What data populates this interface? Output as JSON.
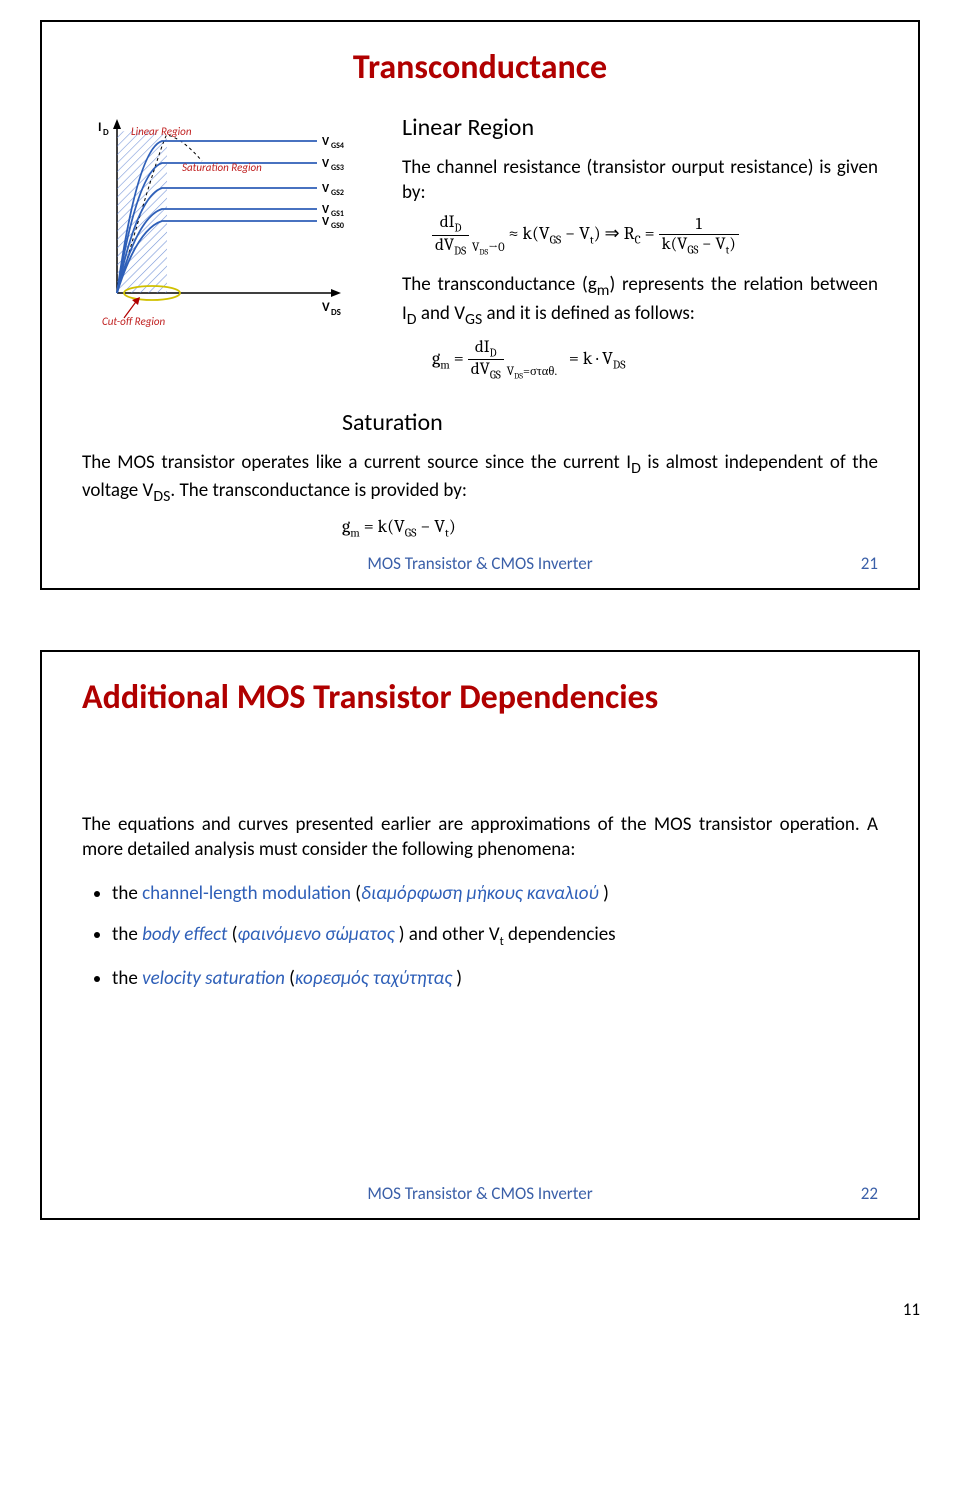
{
  "colors": {
    "title_red": "#b00000",
    "text_blue": "#2e5fb8",
    "label_red": "#c02020",
    "footer_blue": "#3a5fa8",
    "hatch": "#5a7fd0",
    "oval_y": "#d0c000",
    "black": "#000000",
    "body": "#333333"
  },
  "footer": {
    "text": "MOS Transistor & CMOS Inverter"
  },
  "slide21": {
    "title": "Transconductance",
    "chart": {
      "y_axis": "I",
      "y_axis_sub": "D",
      "x_axis": "V",
      "x_axis_sub": "DS",
      "lbl_linear": "Linear Region",
      "lbl_sat": "Saturation Region",
      "lbl_cutoff": "Cut-off Region",
      "v": [
        "V",
        "V",
        "V",
        "V",
        "V"
      ],
      "vs": [
        "GS4",
        "GS3",
        "GS2",
        "GS1",
        "GS0"
      ],
      "curves": [
        {
          "yflat": 28,
          "col": "#2e5fb8"
        },
        {
          "yflat": 50,
          "col": "#2e5fb8"
        },
        {
          "yflat": 75,
          "col": "#2e5fb8"
        },
        {
          "yflat": 96,
          "col": "#2e5fb8"
        },
        {
          "yflat": 108,
          "col": "#2e5fb8"
        }
      ]
    },
    "linear_hdr": "Linear Region",
    "linear_body": "The channel resistance (transistor ourput resistance) is given by:",
    "eq1_a": "dI",
    "eq1_b": "D",
    "eq1_den": "dV",
    "eq1_den_s": "DS",
    "eq1_cond": "V",
    "eq1_cond_s": "DS",
    "eq1_cond2": "→0",
    "eq1_r1": "≈ k(V",
    "eq1_gs": "GS",
    "eq1_r2": " − V",
    "eq1_t": "t",
    "eq1_r3": ") ⇒ R",
    "eq1_c": "C",
    "eq1_eq": " = ",
    "eq1_one": "1",
    "eq1_kden": "k(V",
    "eq1_kden2": " − V",
    "eq1_kden3": ")",
    "trans_body": "The transconductance (g<sub>m</sub>) represents the relation between I<sub>D</sub> and V<sub>GS</sub> and it is defined as follows:",
    "eq2_pre": "g",
    "eq2_m": "m",
    "eq2_eq": " = ",
    "eq2_num": "dI",
    "eq2_num_s": "D",
    "eq2_den": "dV",
    "eq2_den_s": "GS",
    "eq2_cond": "V",
    "eq2_cond_s": "DS",
    "eq2_cond2": "=σταθ.",
    "eq2_r": " = k · V",
    "eq2_rs": "DS",
    "sat_hdr": "Saturation",
    "sat_body": "The MOS transistor operates like a current source since the current I<sub>D</sub> is almost independent of the voltage V<sub>DS</sub>. The transconductance  is provided by:",
    "eq3": "g",
    "eq3_m": "m",
    "eq3_b": " = k(V",
    "eq3_gs": "GS",
    "eq3_c": " − V",
    "eq3_t": "t",
    "eq3_d": ")",
    "pageno": "21"
  },
  "slide22": {
    "title": "Additional MOS Transistor Dependencies",
    "intro": "The equations and curves presented earlier are approximations of the MOS transistor operation. A more detailed analysis must consider the following phenomena:",
    "b1_a": "the ",
    "b1_b": "channel-length modulation",
    "b1_c": " (",
    "b1_d": "διαμόρφωση μήκους καναλιού ",
    "b1_e": ")",
    "b2_a": "the ",
    "b2_b": "body effect",
    "b2_c": " (",
    "b2_d": "φαινόμενο σώματος ",
    "b2_e": ") and other V",
    "b2_sub": "t",
    "b2_f": " dependencies",
    "b3_a": "the ",
    "b3_b": "velocity saturation",
    "b3_c": " (",
    "b3_d": "κορεσμός ταχύτητας ",
    "b3_e": ")",
    "pageno": "22"
  },
  "page_number": "11"
}
